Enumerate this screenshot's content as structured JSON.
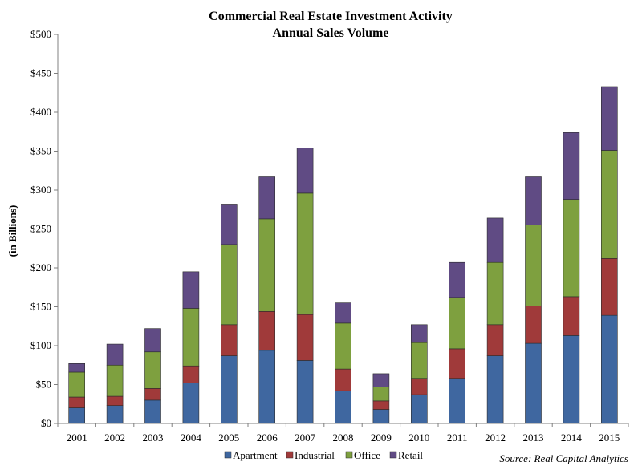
{
  "chart_data": {
    "type": "bar",
    "stacked": true,
    "title": "Commercial Real Estate Investment Activity",
    "subtitle": "Annual Sales Volume",
    "ylabel": "(in Billions)",
    "xlabel": "",
    "ylim": [
      0,
      500
    ],
    "y_ticks": [
      "$0",
      "$50",
      "$100",
      "$150",
      "$200",
      "$250",
      "$300",
      "$350",
      "$400",
      "$450",
      "$500"
    ],
    "y_tick_values": [
      0,
      50,
      100,
      150,
      200,
      250,
      300,
      350,
      400,
      450,
      500
    ],
    "grid": false,
    "legend_position": "bottom",
    "categories": [
      "2001",
      "2002",
      "2003",
      "2004",
      "2005",
      "2006",
      "2007",
      "2008",
      "2009",
      "2010",
      "2011",
      "2012",
      "2013",
      "2014",
      "2015"
    ],
    "series": [
      {
        "name": "Apartment",
        "color": "#3f67a0",
        "values": [
          20,
          23,
          30,
          52,
          87,
          94,
          81,
          42,
          18,
          37,
          58,
          87,
          103,
          113,
          139
        ]
      },
      {
        "name": "Industrial",
        "color": "#a03a3a",
        "values": [
          14,
          12,
          15,
          22,
          40,
          50,
          59,
          28,
          11,
          21,
          38,
          40,
          48,
          50,
          73
        ]
      },
      {
        "name": "Office",
        "color": "#7ea03f",
        "values": [
          32,
          40,
          47,
          74,
          103,
          119,
          156,
          59,
          18,
          46,
          66,
          80,
          104,
          125,
          139
        ]
      },
      {
        "name": "Retail",
        "color": "#604b84",
        "values": [
          11,
          27,
          30,
          47,
          52,
          54,
          58,
          26,
          17,
          23,
          45,
          57,
          62,
          86,
          82
        ]
      }
    ],
    "source": "Source: Real Capital Analytics"
  }
}
